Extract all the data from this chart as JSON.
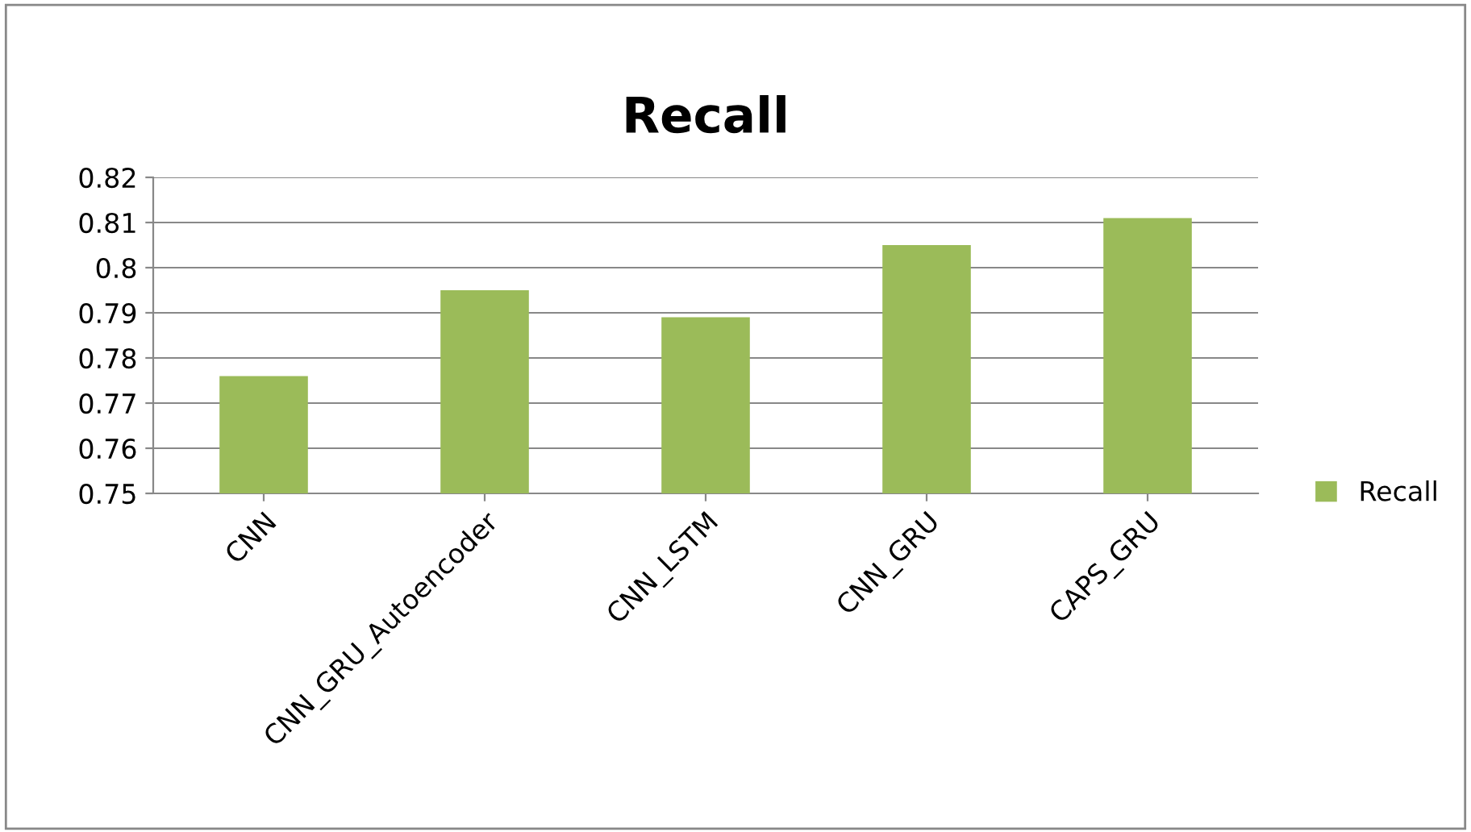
{
  "chart_data": {
    "type": "bar",
    "title": "Recall",
    "categories": [
      "CNN",
      "CNN_GRU_Autoencoder",
      "CNN_LSTM",
      "CNN_GRU",
      "CAPS_GRU"
    ],
    "series": [
      {
        "name": "Recall",
        "color": "#9bbb59",
        "values": [
          0.776,
          0.795,
          0.789,
          0.805,
          0.811
        ]
      }
    ],
    "ylim": [
      0.75,
      0.82
    ],
    "yticks": [
      0.75,
      0.76,
      0.77,
      0.78,
      0.79,
      0.8,
      0.81,
      0.82
    ],
    "grid": "y",
    "legend": "right"
  }
}
